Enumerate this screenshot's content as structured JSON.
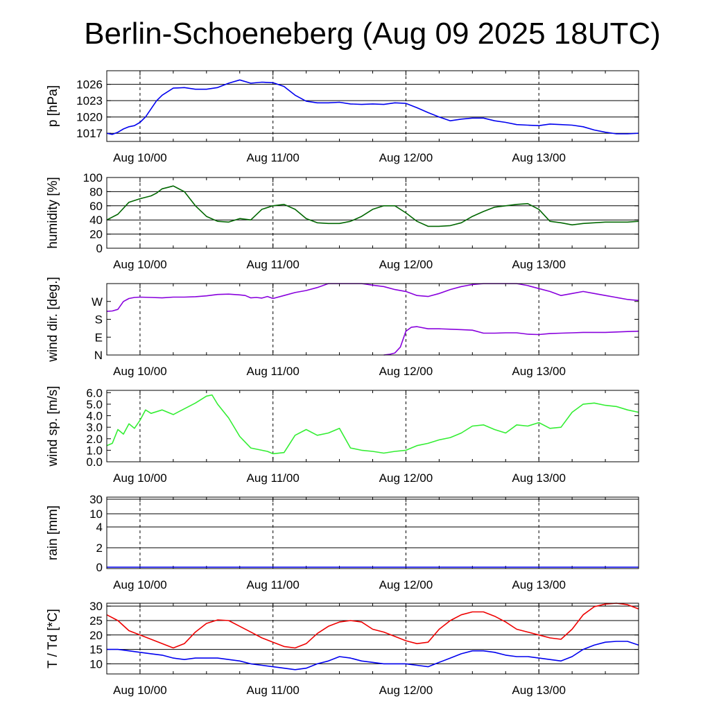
{
  "title": "Berlin-Schoeneberg (Aug 09 2025 18UTC)",
  "x_day_labels": [
    "Aug 10/00",
    "Aug 11/00",
    "Aug 12/00",
    "Aug 13/00"
  ],
  "chart_data": [
    {
      "type": "line",
      "ylabel": "p [hPa]",
      "x_unit": "hours since Aug 09 18UTC",
      "xlim": [
        0,
        96
      ],
      "ylim": [
        1015.5,
        1028.5
      ],
      "yticks": [
        1017,
        1020,
        1023,
        1026
      ],
      "ygrid": [
        1017,
        1020,
        1023,
        1026
      ],
      "series": [
        {
          "color": "#0000ee",
          "x": [
            0,
            1,
            2,
            3,
            4,
            5,
            6,
            7,
            8,
            9,
            10,
            12,
            14,
            16,
            18,
            20,
            22,
            24,
            26,
            28,
            30,
            32,
            34,
            36,
            38,
            40,
            42,
            44,
            46,
            48,
            50,
            52,
            54,
            56,
            58,
            60,
            62,
            64,
            66,
            68,
            70,
            72,
            74,
            76,
            78,
            80,
            82,
            84,
            86,
            88,
            90,
            92,
            94,
            96
          ],
          "y": [
            1017.0,
            1016.8,
            1017.2,
            1017.8,
            1018.2,
            1018.4,
            1019.0,
            1020.0,
            1021.5,
            1023.0,
            1024.0,
            1025.3,
            1025.4,
            1025.1,
            1025.1,
            1025.4,
            1026.2,
            1026.8,
            1026.2,
            1026.4,
            1026.3,
            1025.6,
            1024.0,
            1022.9,
            1022.6,
            1022.6,
            1022.7,
            1022.4,
            1022.3,
            1022.4,
            1022.3,
            1022.6,
            1022.5,
            1021.7,
            1020.8,
            1020.0,
            1019.3,
            1019.6,
            1019.8,
            1019.8,
            1019.3,
            1019.0,
            1018.6,
            1018.5,
            1018.4,
            1018.7,
            1018.6,
            1018.5,
            1018.2,
            1017.6,
            1017.2,
            1016.9,
            1016.9,
            1017.0
          ]
        }
      ]
    },
    {
      "type": "line",
      "ylabel": "humidity [%]",
      "x_unit": "hours since Aug 09 18UTC",
      "xlim": [
        0,
        96
      ],
      "ylim": [
        0,
        100
      ],
      "yticks": [
        0,
        20,
        40,
        60,
        80,
        100
      ],
      "ygrid": [
        20,
        40,
        60,
        80,
        100
      ],
      "series": [
        {
          "color": "#006600",
          "x": [
            0,
            2,
            4,
            6,
            8,
            9,
            10,
            11,
            12,
            14,
            16,
            18,
            20,
            22,
            24,
            26,
            28,
            30,
            32,
            34,
            36,
            38,
            40,
            42,
            44,
            46,
            48,
            50,
            52,
            54,
            56,
            58,
            60,
            62,
            64,
            66,
            68,
            70,
            72,
            74,
            76,
            78,
            80,
            82,
            84,
            86,
            88,
            90,
            92,
            94,
            96
          ],
          "y": [
            40,
            48,
            65,
            70,
            74,
            78,
            84,
            86,
            88,
            80,
            60,
            45,
            38,
            37,
            42,
            40,
            55,
            60,
            62,
            55,
            42,
            36,
            35,
            35,
            38,
            45,
            55,
            60,
            60,
            50,
            38,
            31,
            31,
            32,
            36,
            45,
            52,
            58,
            60,
            62,
            63,
            55,
            38,
            36,
            33,
            35,
            36,
            37,
            37,
            37,
            38
          ]
        }
      ]
    },
    {
      "type": "line",
      "ylabel": "wind dir. [deg.]",
      "x_unit": "hours since Aug 09 18UTC",
      "xlim": [
        0,
        96
      ],
      "ylim": [
        0,
        360
      ],
      "yticks": [
        0,
        90,
        180,
        270
      ],
      "ytick_labels": [
        "N",
        "E",
        "S",
        "W"
      ],
      "series": [
        {
          "color": "#8800dd",
          "x": [
            0,
            1,
            2,
            3,
            4,
            5,
            6,
            8,
            10,
            12,
            14,
            16,
            18,
            20,
            22,
            24,
            25,
            26,
            27,
            28,
            29,
            30,
            32,
            34,
            36,
            38,
            40,
            42,
            44,
            46,
            48,
            50,
            52,
            54,
            56,
            58,
            60,
            62,
            64,
            66,
            68,
            70,
            72,
            74,
            76,
            78,
            80,
            82,
            84,
            86,
            88,
            90,
            92,
            94,
            96
          ],
          "y": [
            220,
            222,
            230,
            270,
            285,
            290,
            292,
            290,
            288,
            292,
            292,
            294,
            298,
            305,
            307,
            303,
            300,
            288,
            290,
            287,
            295,
            285,
            300,
            315,
            325,
            340,
            360,
            360,
            360,
            360,
            352,
            345,
            330,
            320,
            300,
            295,
            310,
            330,
            345,
            355,
            360,
            360,
            360,
            360,
            350,
            335,
            320,
            300,
            310,
            320,
            310,
            300,
            290,
            280,
            275
          ]
        },
        {
          "color": "#8800dd",
          "x": [
            50,
            51,
            52,
            53,
            54,
            55,
            56,
            58,
            60,
            62,
            64,
            66,
            68,
            70,
            72,
            74,
            76,
            78,
            80,
            82,
            84,
            86,
            88,
            90,
            92,
            94,
            96
          ],
          "y": [
            0,
            3,
            10,
            40,
            120,
            140,
            143,
            132,
            132,
            130,
            128,
            125,
            110,
            110,
            112,
            112,
            105,
            103,
            108,
            110,
            112,
            114,
            114,
            114,
            116,
            118,
            120
          ]
        }
      ]
    },
    {
      "type": "line",
      "ylabel": "wind sp. [m/s]",
      "x_unit": "hours since Aug 09 18UTC",
      "xlim": [
        0,
        96
      ],
      "ylim": [
        0,
        6.2
      ],
      "yticks": [
        0.0,
        1.0,
        2.0,
        3.0,
        4.0,
        5.0,
        6.0
      ],
      "ytick_labels": [
        "0.0",
        "1.0",
        "2.0",
        "3.0",
        "4.0",
        "5.0",
        "6.0"
      ],
      "series": [
        {
          "color": "#33ee33",
          "x": [
            0,
            1,
            2,
            3,
            4,
            5,
            6,
            7,
            8,
            10,
            12,
            14,
            16,
            18,
            19,
            20,
            22,
            24,
            26,
            28,
            29,
            30,
            32,
            34,
            36,
            38,
            40,
            42,
            44,
            46,
            48,
            50,
            52,
            54,
            56,
            58,
            60,
            62,
            64,
            66,
            68,
            70,
            72,
            74,
            76,
            78,
            80,
            82,
            84,
            86,
            88,
            90,
            92,
            94,
            96
          ],
          "y": [
            1.4,
            1.6,
            2.8,
            2.4,
            3.3,
            2.9,
            3.6,
            4.5,
            4.2,
            4.5,
            4.1,
            4.6,
            5.1,
            5.7,
            5.8,
            5.0,
            3.8,
            2.2,
            1.2,
            1.0,
            0.9,
            0.7,
            0.8,
            2.3,
            2.8,
            2.3,
            2.5,
            2.9,
            1.2,
            1.0,
            0.9,
            0.75,
            0.9,
            1.0,
            1.4,
            1.6,
            1.9,
            2.1,
            2.5,
            3.1,
            3.2,
            2.8,
            2.5,
            3.2,
            3.1,
            3.4,
            2.9,
            3.0,
            4.3,
            5.0,
            5.1,
            4.9,
            4.8,
            4.5,
            4.3
          ]
        }
      ]
    },
    {
      "type": "line",
      "ylabel": "rain [mm]",
      "x_unit": "hours since Aug 09 18UTC",
      "xlim": [
        0,
        96
      ],
      "yticks": [
        0,
        2,
        4,
        10,
        30
      ],
      "ytick_labels": [
        "0",
        "2",
        "4",
        "10",
        "30"
      ],
      "ygrid": [
        2,
        4,
        10,
        30
      ],
      "series": [
        {
          "color": "#0000ee",
          "x": [
            0,
            96
          ],
          "y": [
            0,
            0
          ]
        }
      ]
    },
    {
      "type": "line",
      "ylabel": "T / Td [*C]",
      "x_unit": "hours since Aug 09 18UTC",
      "xlim": [
        0,
        96
      ],
      "ylim": [
        6.5,
        31
      ],
      "yticks": [
        10,
        15,
        20,
        25,
        30
      ],
      "ygrid": [
        10,
        15,
        20,
        25,
        30
      ],
      "series": [
        {
          "color": "#ee0000",
          "x": [
            0,
            2,
            4,
            6,
            8,
            10,
            12,
            14,
            16,
            18,
            20,
            22,
            24,
            26,
            28,
            30,
            32,
            34,
            36,
            38,
            40,
            42,
            44,
            46,
            48,
            50,
            52,
            54,
            56,
            58,
            60,
            62,
            64,
            66,
            68,
            70,
            72,
            74,
            76,
            78,
            80,
            82,
            84,
            86,
            88,
            90,
            92,
            94,
            96
          ],
          "y": [
            27,
            25,
            21.5,
            20,
            18.5,
            17,
            15.5,
            17,
            21,
            24,
            25.2,
            25,
            23,
            21,
            19,
            17.5,
            16,
            15.5,
            17,
            20.5,
            23,
            24.5,
            25,
            24.5,
            22,
            21,
            19.5,
            18,
            17,
            17.5,
            22,
            25,
            27,
            28,
            28,
            26.5,
            24.5,
            22,
            21,
            20,
            19,
            18.5,
            22,
            27,
            29.8,
            30.7,
            31,
            30.5,
            29
          ]
        },
        {
          "color": "#0000ee",
          "x": [
            0,
            2,
            4,
            6,
            8,
            10,
            12,
            14,
            16,
            18,
            20,
            22,
            24,
            26,
            28,
            30,
            32,
            34,
            36,
            38,
            40,
            42,
            44,
            46,
            48,
            50,
            52,
            54,
            56,
            58,
            60,
            62,
            64,
            66,
            68,
            70,
            72,
            74,
            76,
            78,
            80,
            82,
            84,
            86,
            88,
            90,
            92,
            94,
            96
          ],
          "y": [
            15,
            15,
            14.5,
            14,
            13.5,
            13,
            12,
            11.5,
            12,
            12,
            12,
            11.5,
            11,
            10,
            9.5,
            9,
            8.5,
            8,
            8.5,
            10,
            11,
            12.5,
            12,
            11,
            10.5,
            10,
            10,
            10,
            9.5,
            9,
            10.5,
            12,
            13.5,
            14.5,
            14.5,
            14,
            13,
            12.5,
            12.5,
            12,
            11.5,
            11,
            12.5,
            15,
            16.5,
            17.5,
            17.8,
            17.8,
            16.5
          ]
        }
      ]
    }
  ]
}
